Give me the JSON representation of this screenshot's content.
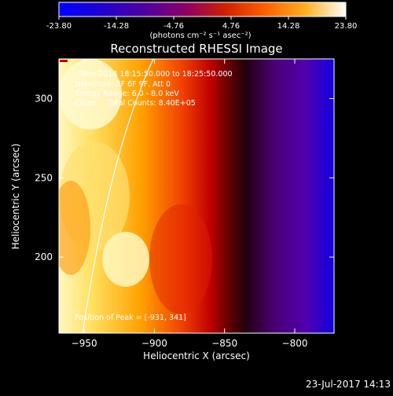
{
  "chart_data": {
    "type": "heatmap",
    "title": "Reconstructed RHESSI Image",
    "xlabel": "Heliocentric X (arcsec)",
    "ylabel": "Heliocentric Y (arcsec)",
    "xlim": [
      -968,
      -772
    ],
    "ylim": [
      152,
      325
    ],
    "xticks": [
      -950,
      -900,
      -850,
      -800
    ],
    "yticks": [
      200,
      250,
      300
    ],
    "colorbar": {
      "min": -23.8,
      "max": 23.8,
      "ticks": [
        "-23.80",
        "-14.28",
        "-4.76",
        "4.76",
        "14.28",
        "23.80"
      ],
      "unit_label": "(photons cm⁻² s⁻¹ asec⁻²)",
      "colormap": [
        "#0000ff",
        "#3000c0",
        "#600090",
        "#900050",
        "#c01010",
        "#ff4000",
        "#ff9000",
        "#ffe040",
        "#ffffff"
      ]
    },
    "annotations": [
      "-Nov-2014 18:15:50.000 to 18:25:50.000",
      "Detectors: 3F 6F 9F, Att 0",
      "Energy Range: 6.0 - 8.0 keV",
      "Clean     Total Counts: 8.40E+05"
    ],
    "peak_label": "Position of Peak = [-931, 341]",
    "bands_x": [
      -968,
      -950,
      -935,
      -915,
      -900,
      -885,
      -872,
      -862,
      -852,
      -842,
      -830,
      -815,
      -800,
      -785,
      -772
    ],
    "band_values": [
      23,
      23,
      21,
      17,
      13,
      9,
      6,
      3,
      0,
      -3,
      -6,
      -10,
      -14,
      -18,
      -22
    ]
  },
  "footer": {
    "timestamp": "23-Jul-2017 14:13"
  }
}
